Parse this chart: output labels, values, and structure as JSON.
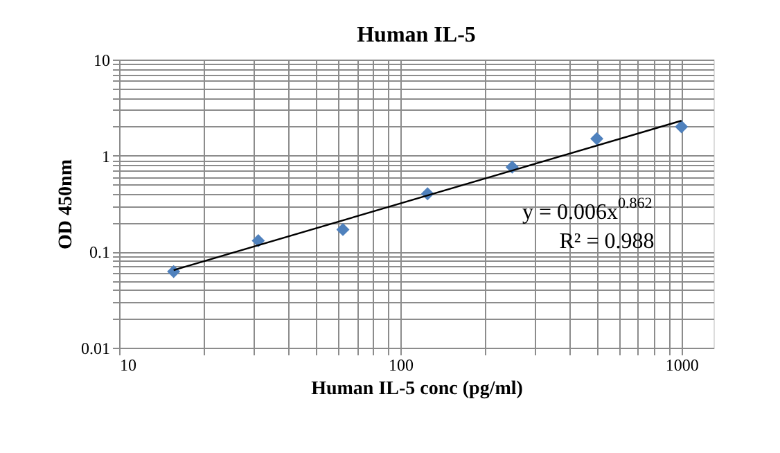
{
  "chart_data": {
    "type": "scatter",
    "title": "Human IL-5",
    "xlabel": "Human IL-5 conc (pg/ml)",
    "ylabel": "OD 450nm",
    "x": [
      15.625,
      31.25,
      62.5,
      125,
      250,
      500,
      1000
    ],
    "series": [
      {
        "type": "scatter",
        "color": "#4f81bd",
        "marker": "diamond",
        "values": [
          0.062,
          0.13,
          0.17,
          0.4,
          0.76,
          1.5,
          2.0
        ]
      },
      {
        "type": "line",
        "color": "#000000",
        "marker": "none",
        "line_style": "solid",
        "x": [
          15.625,
          1000
        ],
        "values": [
          0.0642,
          2.31
        ]
      }
    ],
    "log": "xy",
    "xlim": [
      10,
      1300
    ],
    "ylim": [
      0.01,
      10
    ],
    "xticks": [
      10,
      {
        "value": 20,
        "label": null
      },
      {
        "value": 30,
        "label": null
      },
      {
        "value": 40,
        "label": null
      },
      {
        "value": 50,
        "label": null
      },
      {
        "value": 60,
        "label": null
      },
      {
        "value": 70,
        "label": null
      },
      {
        "value": 80,
        "label": null
      },
      {
        "value": 90,
        "label": null
      },
      100,
      {
        "value": 200,
        "label": null
      },
      {
        "value": 300,
        "label": null
      },
      {
        "value": 400,
        "label": null
      },
      {
        "value": 500,
        "label": null
      },
      {
        "value": 600,
        "label": null
      },
      {
        "value": 700,
        "label": null
      },
      {
        "value": 800,
        "label": null
      },
      {
        "value": 900,
        "label": null
      },
      1000
    ],
    "yticks": [
      0.01,
      {
        "value": 0.02,
        "label": null
      },
      {
        "value": 0.03,
        "label": null
      },
      {
        "value": 0.04,
        "label": null
      },
      {
        "value": 0.05,
        "label": null
      },
      {
        "value": 0.06,
        "label": null
      },
      {
        "value": 0.07,
        "label": null
      },
      {
        "value": 0.08,
        "label": null
      },
      {
        "value": 0.09,
        "label": null
      },
      0.1,
      {
        "value": 0.2,
        "label": null
      },
      {
        "value": 0.3,
        "label": null
      },
      {
        "value": 0.4,
        "label": null
      },
      {
        "value": 0.5,
        "label": null
      },
      {
        "value": 0.6,
        "label": null
      },
      {
        "value": 0.7,
        "label": null
      },
      {
        "value": 0.8,
        "label": null
      },
      {
        "value": 0.9,
        "label": null
      },
      1,
      {
        "value": 2,
        "label": null
      },
      {
        "value": 3,
        "label": null
      },
      {
        "value": 4,
        "label": null
      },
      {
        "value": 5,
        "label": null
      },
      {
        "value": 6,
        "label": null
      },
      {
        "value": 7,
        "label": null
      },
      {
        "value": 8,
        "label": null
      },
      {
        "value": 9,
        "label": null
      },
      10
    ],
    "grid": true,
    "annotations": [
      "y = 0.006x$^{0.862}$",
      "R² = 0.988"
    ]
  }
}
